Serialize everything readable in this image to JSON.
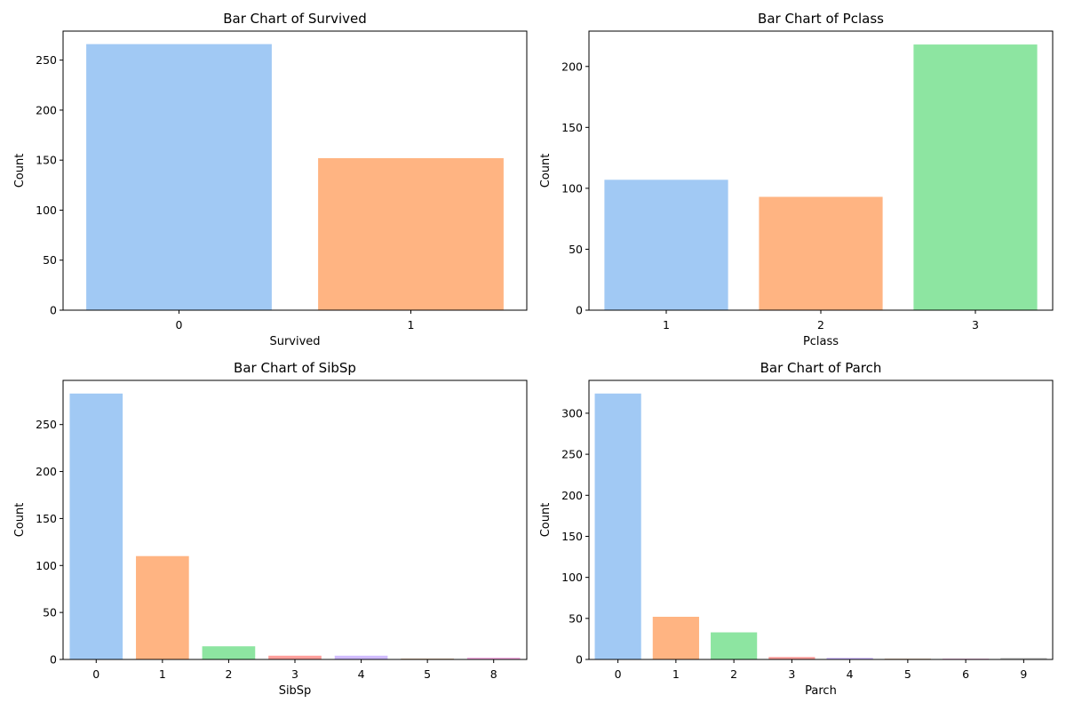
{
  "chart_data": [
    {
      "type": "bar",
      "title": "Bar Chart of Survived",
      "xlabel": "Survived",
      "ylabel": "Count",
      "categories": [
        "0",
        "1"
      ],
      "values": [
        266,
        152
      ],
      "ylim": [
        0,
        279
      ],
      "yticks": [
        0,
        50,
        100,
        150,
        200,
        250
      ],
      "colors": [
        "#a1c9f4",
        "#ffb482"
      ],
      "grid": false
    },
    {
      "type": "bar",
      "title": "Bar Chart of Pclass",
      "xlabel": "Pclass",
      "ylabel": "Count",
      "categories": [
        "1",
        "2",
        "3"
      ],
      "values": [
        107,
        93,
        218
      ],
      "ylim": [
        0,
        229
      ],
      "yticks": [
        0,
        50,
        100,
        150,
        200
      ],
      "colors": [
        "#a1c9f4",
        "#ffb482",
        "#8de5a1"
      ],
      "grid": false
    },
    {
      "type": "bar",
      "title": "Bar Chart of SibSp",
      "xlabel": "SibSp",
      "ylabel": "Count",
      "categories": [
        "0",
        "1",
        "2",
        "3",
        "4",
        "5",
        "8"
      ],
      "values": [
        283,
        110,
        14,
        4,
        4,
        1,
        2
      ],
      "ylim": [
        0,
        297
      ],
      "yticks": [
        0,
        50,
        100,
        150,
        200,
        250
      ],
      "colors": [
        "#a1c9f4",
        "#ffb482",
        "#8de5a1",
        "#ff9f9b",
        "#d0bbff",
        "#debb9b",
        "#fab0e4"
      ],
      "grid": false
    },
    {
      "type": "bar",
      "title": "Bar Chart of Parch",
      "xlabel": "Parch",
      "ylabel": "Count",
      "categories": [
        "0",
        "1",
        "2",
        "3",
        "4",
        "5",
        "6",
        "9"
      ],
      "values": [
        324,
        52,
        33,
        3,
        2,
        1,
        1,
        2
      ],
      "ylim": [
        0,
        340
      ],
      "yticks": [
        0,
        50,
        100,
        150,
        200,
        250,
        300
      ],
      "colors": [
        "#a1c9f4",
        "#ffb482",
        "#8de5a1",
        "#ff9f9b",
        "#d0bbff",
        "#debb9b",
        "#fab0e4",
        "#cfcfcf"
      ],
      "grid": false
    }
  ]
}
